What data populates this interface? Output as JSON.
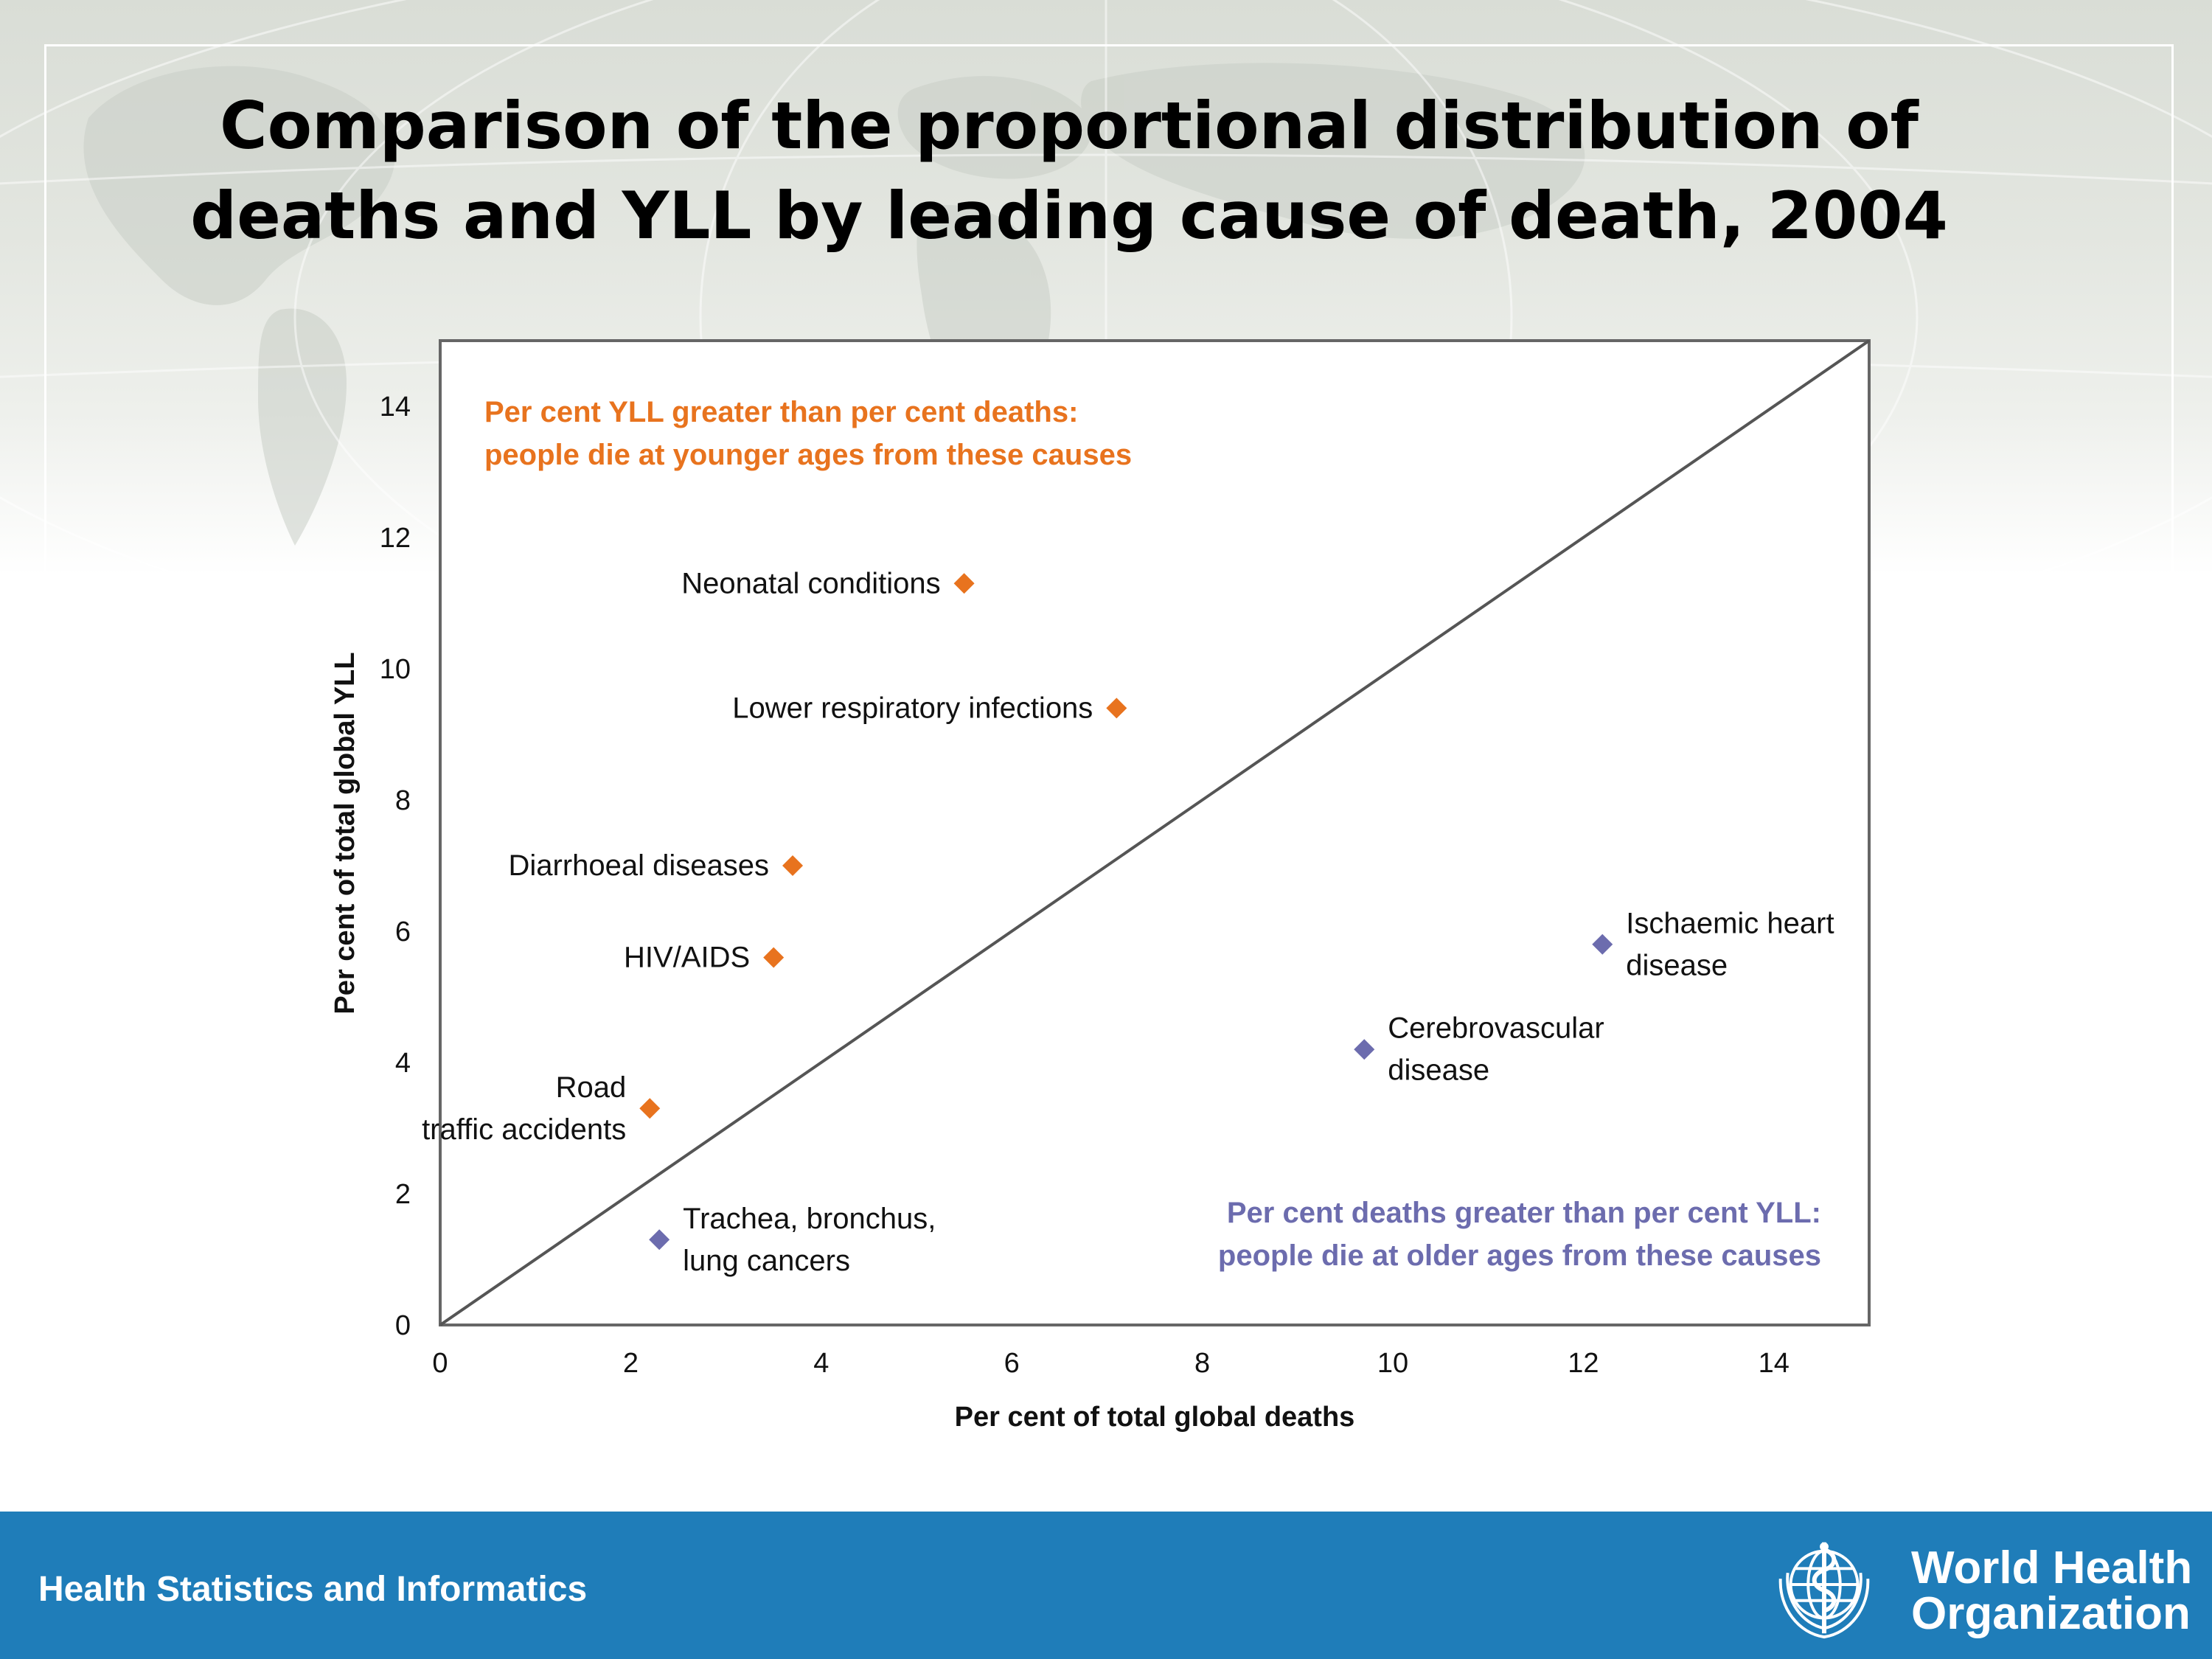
{
  "slide": {
    "title_line1": "Comparison of the proportional distribution of",
    "title_line2": "deaths and YLL by leading cause of death, 2004"
  },
  "footer": {
    "text": "Health Statistics and Informatics",
    "org_line1": "World Health",
    "org_line2": "Organization",
    "background": "#1f7db9"
  },
  "chart_data": {
    "type": "scatter",
    "xlabel": "Per cent of total global deaths",
    "ylabel": "Per cent of total global YLL",
    "xlim": [
      0,
      15
    ],
    "ylim": [
      0,
      15
    ],
    "xticks": [
      0,
      2,
      4,
      6,
      8,
      10,
      12,
      14
    ],
    "yticks": [
      0,
      2,
      4,
      6,
      8,
      10,
      12,
      14
    ],
    "reference_line": "y = x",
    "grid": false,
    "colors": {
      "younger": "#e8731e",
      "older": "#6c6cae",
      "axis": "#555555"
    },
    "annotations": [
      {
        "group": "younger",
        "placement": "top-left",
        "lines": [
          "Per cent YLL greater than per cent deaths:",
          "people die at younger ages from these causes"
        ]
      },
      {
        "group": "older",
        "placement": "bottom-right",
        "lines": [
          "Per cent deaths greater than per cent YLL:",
          "people die at older ages from these causes"
        ]
      }
    ],
    "points": [
      {
        "label": [
          "Neonatal conditions"
        ],
        "x": 5.5,
        "y": 11.3,
        "group": "younger",
        "label_side": "left"
      },
      {
        "label": [
          "Lower respiratory infections"
        ],
        "x": 7.1,
        "y": 9.4,
        "group": "younger",
        "label_side": "left"
      },
      {
        "label": [
          "Diarrhoeal diseases"
        ],
        "x": 3.7,
        "y": 7.0,
        "group": "younger",
        "label_side": "left"
      },
      {
        "label": [
          "HIV/AIDS"
        ],
        "x": 3.5,
        "y": 5.6,
        "group": "younger",
        "label_side": "left"
      },
      {
        "label": [
          "Road",
          "traffic accidents"
        ],
        "x": 2.2,
        "y": 3.3,
        "group": "younger",
        "label_side": "left"
      },
      {
        "label": [
          "Trachea, bronchus,",
          "lung cancers"
        ],
        "x": 2.3,
        "y": 1.3,
        "group": "older",
        "label_side": "right"
      },
      {
        "label": [
          "Cerebrovascular",
          "disease"
        ],
        "x": 9.7,
        "y": 4.2,
        "group": "older",
        "label_side": "right"
      },
      {
        "label": [
          "Ischaemic heart",
          "disease"
        ],
        "x": 12.2,
        "y": 5.8,
        "group": "older",
        "label_side": "right"
      }
    ]
  }
}
